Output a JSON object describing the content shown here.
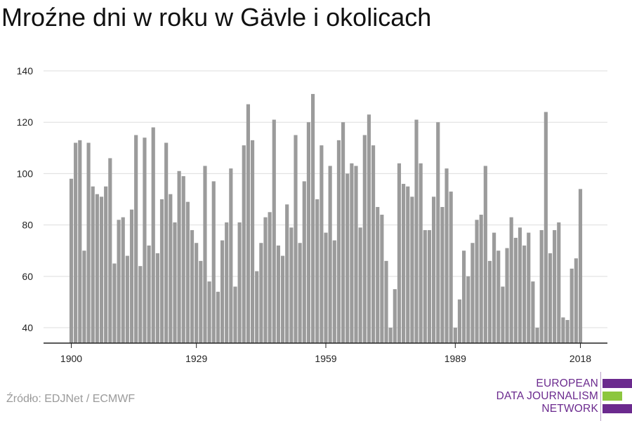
{
  "title": "Mroźne dni w roku w Gävle i okolicach",
  "source": "Źródło: EDJNet / ECMWF",
  "logo": {
    "line1": "EUROPEAN",
    "line2": "DATA JOURNALISM",
    "line3": "NETWORK",
    "color_purple": "#6b2a8e",
    "color_green": "#8cc63f"
  },
  "colors": {
    "bar": "#9b9b9b",
    "grid": "#dddddd",
    "axis": "#222222",
    "tick_text": "#222222"
  },
  "chart_data": {
    "type": "bar",
    "title": "Mroźne dni w roku w Gävle i okolicach",
    "xlabel": "",
    "ylabel": "",
    "ylim": [
      34,
      140
    ],
    "y_ticks": [
      40,
      60,
      80,
      100,
      120,
      140
    ],
    "x_ticks": [
      1900,
      1929,
      1959,
      1989,
      2018
    ],
    "grid": true,
    "legend": "none",
    "categories": [
      1900,
      1901,
      1902,
      1903,
      1904,
      1905,
      1906,
      1907,
      1908,
      1909,
      1910,
      1911,
      1912,
      1913,
      1914,
      1915,
      1916,
      1917,
      1918,
      1919,
      1920,
      1921,
      1922,
      1923,
      1924,
      1925,
      1926,
      1927,
      1928,
      1929,
      1930,
      1931,
      1932,
      1933,
      1934,
      1935,
      1936,
      1937,
      1938,
      1939,
      1940,
      1941,
      1942,
      1943,
      1944,
      1945,
      1946,
      1947,
      1948,
      1949,
      1950,
      1951,
      1952,
      1953,
      1954,
      1955,
      1956,
      1957,
      1958,
      1959,
      1960,
      1961,
      1962,
      1963,
      1964,
      1965,
      1966,
      1967,
      1968,
      1969,
      1970,
      1971,
      1972,
      1973,
      1974,
      1975,
      1976,
      1977,
      1978,
      1979,
      1980,
      1981,
      1982,
      1983,
      1984,
      1985,
      1986,
      1987,
      1988,
      1989,
      1990,
      1991,
      1992,
      1993,
      1994,
      1995,
      1996,
      1997,
      1998,
      1999,
      2000,
      2001,
      2002,
      2003,
      2004,
      2005,
      2006,
      2007,
      2008,
      2009,
      2010,
      2011,
      2012,
      2013,
      2014,
      2015,
      2016,
      2017,
      2018
    ],
    "values": [
      98,
      112,
      113,
      70,
      112,
      95,
      92,
      91,
      95,
      106,
      65,
      82,
      83,
      68,
      86,
      115,
      64,
      114,
      72,
      118,
      69,
      90,
      112,
      92,
      81,
      101,
      99,
      89,
      78,
      73,
      66,
      103,
      58,
      97,
      54,
      74,
      81,
      102,
      56,
      81,
      111,
      127,
      113,
      62,
      73,
      83,
      85,
      121,
      72,
      68,
      88,
      79,
      115,
      73,
      97,
      120,
      131,
      90,
      111,
      77,
      103,
      74,
      113,
      120,
      100,
      104,
      103,
      79,
      115,
      123,
      111,
      87,
      84,
      66,
      40,
      55,
      104,
      96,
      95,
      91,
      121,
      104,
      78,
      78,
      91,
      120,
      87,
      102,
      93,
      40,
      51,
      70,
      60,
      73,
      82,
      84,
      103,
      66,
      77,
      70,
      56,
      71,
      83,
      75,
      79,
      72,
      77,
      58,
      40,
      78,
      124,
      69,
      78,
      81,
      44,
      43,
      63,
      67,
      94
    ]
  }
}
